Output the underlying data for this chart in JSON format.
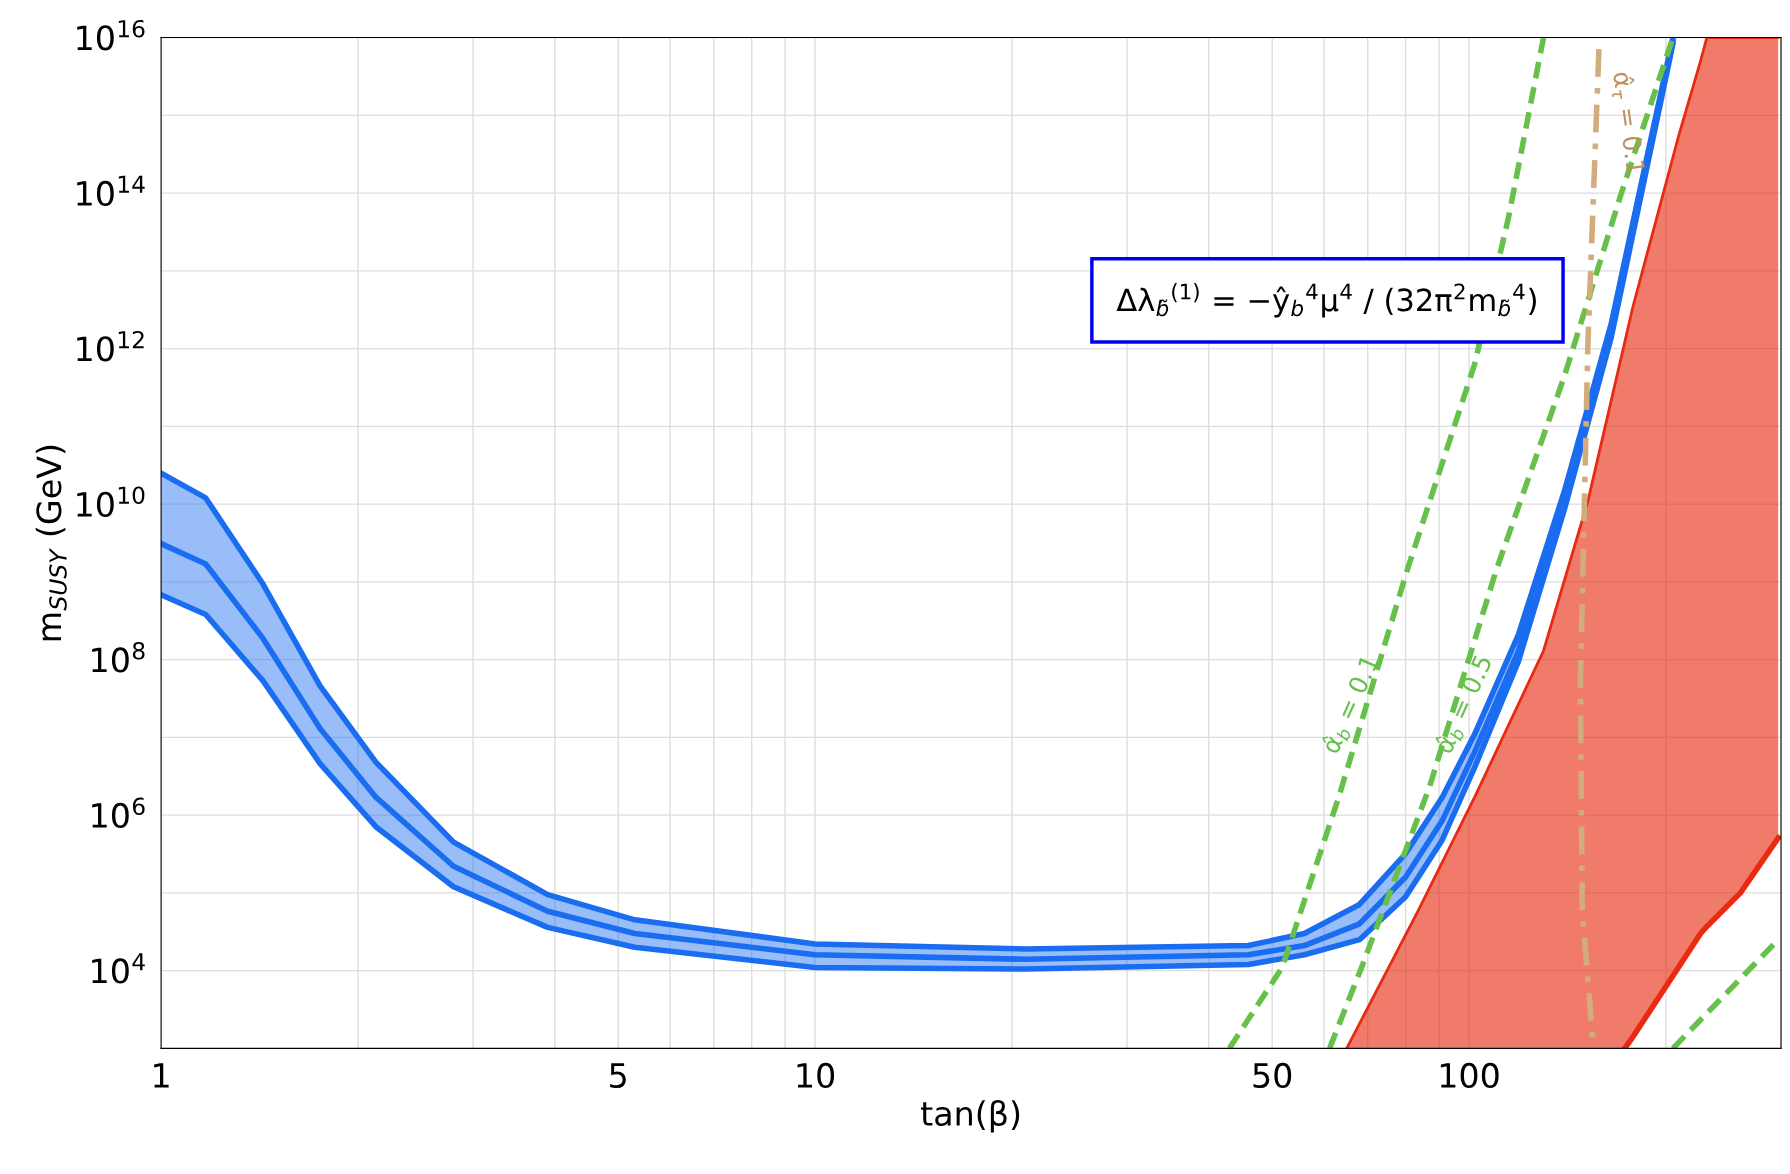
{
  "chart_data": {
    "type": "line",
    "xlabel": "tan(β)",
    "ylabel": "m$_{SUSY}$ (GeV)",
    "log": "xy",
    "grid": true,
    "legend": false,
    "xlim": [
      1,
      300
    ],
    "ylim": [
      1000.0,
      1e+16
    ],
    "xticks": [
      1,
      {
        "value": 2,
        "label": null
      },
      {
        "value": 3,
        "label": null
      },
      {
        "value": 4,
        "label": null
      },
      5,
      {
        "value": 6,
        "label": null
      },
      {
        "value": 7,
        "label": null
      },
      {
        "value": 8,
        "label": null
      },
      {
        "value": 9,
        "label": null
      },
      10,
      {
        "value": 20,
        "label": null
      },
      {
        "value": 30,
        "label": null
      },
      {
        "value": 40,
        "label": null
      },
      50,
      {
        "value": 60,
        "label": null
      },
      {
        "value": 70,
        "label": null
      },
      {
        "value": 80,
        "label": null
      },
      {
        "value": 90,
        "label": null
      },
      100,
      {
        "value": 200,
        "label": null
      },
      {
        "value": 300,
        "label": null
      }
    ],
    "yticks": [
      {
        "value": 10000.0,
        "label": "10$^{4}$"
      },
      {
        "value": 100000.0,
        "label": null
      },
      {
        "value": 1000000.0,
        "label": "10$^{6}$"
      },
      {
        "value": 10000000.0,
        "label": null
      },
      {
        "value": 100000000.0,
        "label": "10$^{8}$"
      },
      {
        "value": 1000000000.0,
        "label": null
      },
      {
        "value": 10000000000.0,
        "label": "10$^{10}$"
      },
      {
        "value": 100000000000.0,
        "label": null
      },
      {
        "value": 1000000000000.0,
        "label": "10$^{12}$"
      },
      {
        "value": 10000000000000.0,
        "label": null
      },
      {
        "value": 100000000000000.0,
        "label": "10$^{14}$"
      },
      {
        "value": 1000000000000000.0,
        "label": null
      },
      {
        "value": 1e+16,
        "label": "10$^{16}$"
      }
    ],
    "series": [
      {
        "color": "#e82a10",
        "x": [
          65,
          83.5,
          102,
          130,
          152,
          173,
          178,
          209,
          226,
          231,
          260,
          297
        ],
        "values": [
          1000.0,
          58000.0,
          1700000.0,
          130000000.0,
          11000000000.0,
          1200000000000.0,
          3400000000000.0,
          530000000000000.0,
          5000000000000000.0,
          1e+16,
          1e+16,
          1e+16
        ],
        "upper": [
          1000.0,
          58000.0,
          1700000.0,
          130000000.0,
          11000000000.0,
          1200000000000.0,
          3400000000000.0,
          530000000000000.0,
          5000000000000000.0,
          1e+16,
          1e+16,
          1e+16
        ],
        "lower": [
          1000.0,
          1000.0,
          1000.0,
          1000.0,
          1000.0,
          1000.0,
          1400.0,
          11000.0,
          30000.0,
          37000.0,
          100000.0,
          510000.0
        ]
      },
      {
        "color": "#e82a10",
        "x": [
          173,
          178,
          209,
          226,
          231,
          260,
          297
        ],
        "values": [
          1000.0,
          1400.0,
          11000.0,
          30000.0,
          37000.0,
          100000.0,
          510000.0
        ]
      },
      {
        "color": "#1a6cf0",
        "x": [
          1,
          1.17,
          1.43,
          1.75,
          2.13,
          2.8,
          3.9,
          5.3,
          10,
          21,
          46,
          56,
          68,
          80,
          91,
          102,
          119,
          140,
          165,
          186,
          205
        ],
        "values": [
          25000000000.0,
          12000000000.0,
          950000000.0,
          46000000.0,
          4800000.0,
          450000.0,
          95000.0,
          45000.0,
          22000.0,
          19000.0,
          21000.0,
          30000.0,
          71000.0,
          320000.0,
          1700000.0,
          11000000.0,
          210000000.0,
          15000000000.0,
          2100000000000.0,
          230000000000000.0,
          1e+16
        ]
      },
      {
        "color": "#1a6cf0",
        "x": [
          1,
          1.17,
          1.43,
          1.75,
          2.13,
          2.8,
          3.9,
          5.3,
          10,
          21,
          46,
          56,
          68,
          80,
          91,
          102,
          119,
          140,
          165,
          186,
          205
        ],
        "values": [
          680000000.0,
          380000000.0,
          54000000.0,
          4600000.0,
          710000.0,
          120000.0,
          36000.0,
          20000.0,
          11000.0,
          10500.0,
          12000.0,
          16000.0,
          25000.0,
          89000.0,
          480000.0,
          4100000.0,
          95000000.0,
          8700000000.0,
          1400000000000.0,
          170000000000000.0,
          8300000000000000.0
        ]
      },
      {
        "color": "#1a6cf0",
        "x": [
          1,
          1.17,
          1.43,
          1.75,
          2.13,
          2.8,
          3.9,
          5.3,
          10,
          21,
          46,
          56,
          68,
          80,
          91,
          102,
          119,
          140,
          165,
          186,
          205
        ],
        "values": [
          3100000000.0,
          1700000000.0,
          190000000.0,
          13000000.0,
          1700000.0,
          220000.0,
          58000.0,
          30000.0,
          16000.0,
          14000.0,
          16000.0,
          21000.0,
          40000.0,
          160000.0,
          850000.0,
          6500000.0,
          130000000.0,
          11000000000.0,
          1700000000000.0,
          190000000000000.0,
          8900000000000000.0
        ],
        "upper": [
          25000000000.0,
          12000000000.0,
          950000000.0,
          46000000.0,
          4800000.0,
          450000.0,
          95000.0,
          45000.0,
          22000.0,
          19000.0,
          21000.0,
          30000.0,
          71000.0,
          320000.0,
          1700000.0,
          11000000.0,
          210000000.0,
          15000000000.0,
          2100000000000.0,
          230000000000000.0,
          1e+16
        ],
        "lower": [
          680000000.0,
          380000000.0,
          54000000.0,
          4600000.0,
          710000.0,
          120000.0,
          36000.0,
          20000.0,
          11000.0,
          10500.0,
          12000.0,
          16000.0,
          25000.0,
          89000.0,
          480000.0,
          4100000.0,
          95000000.0,
          8700000000.0,
          1400000000000.0,
          170000000000000.0,
          8300000000000000.0
        ]
      },
      {
        "color": "#66c04a",
        "line_style": "dashed",
        "x": [
          43,
          51.8,
          63.2,
          80.4,
          102,
          115,
          130
        ],
        "values": [
          1000.0,
          11000.0,
          1700000.0,
          1400000000.0,
          630000000000.0,
          50000000000000.0,
          1e+16
        ]
      },
      {
        "color": "#66c04a",
        "line_style": "dashed",
        "x": [
          61.2,
          68.5,
          87,
          110,
          140,
          171,
          205
        ],
        "values": [
          1000.0,
          11000.0,
          2300000.0,
          1400000000.0,
          450000000000.0,
          100000000000000.0,
          1e+16
        ]
      },
      {
        "color": "#66c04a",
        "line_style": "dashed",
        "x": [
          205,
          297
        ],
        "values": [
          1000.0,
          25000.0
        ]
      },
      {
        "color": "#d2ac7c",
        "line_style": "dashdot",
        "x": [
          158,
          152,
          148,
          149,
          155
        ],
        "values": [
          7100000000000000.0,
          1200000000000.0,
          49000000.0,
          58000.0,
          1000.0
        ]
      }
    ],
    "annotations": [
      "α̂$_{b}$ = 0.1",
      "α̂$_{b}$ = 0.5",
      "α̂$_{τ}$ = 0.1",
      "Δλ$_{b̃}$$^{(1)}$ = −ŷ$_{b}$$^{4}$μ$^{4}$ / (32π$^{2}$m$_{b̃}$$^{4}$)"
    ]
  }
}
